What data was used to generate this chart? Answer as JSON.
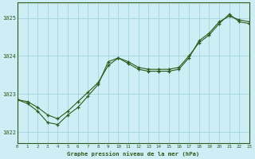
{
  "title": "Graphe pression niveau de la mer (hPa)",
  "bg_color": "#ceeef5",
  "grid_color": "#a8d8e0",
  "line_color": "#2d5a1b",
  "xlim": [
    0,
    23
  ],
  "ylim": [
    1021.7,
    1025.4
  ],
  "yticks": [
    1022,
    1023,
    1024,
    1025
  ],
  "xticks": [
    0,
    1,
    2,
    3,
    4,
    5,
    6,
    7,
    8,
    9,
    10,
    11,
    12,
    13,
    14,
    15,
    16,
    17,
    18,
    19,
    20,
    21,
    22,
    23
  ],
  "line1_x": [
    0,
    1,
    2,
    3,
    4,
    5,
    6,
    7,
    8,
    9,
    10,
    11,
    12,
    13,
    14,
    15,
    16,
    17,
    18,
    19,
    20,
    21,
    22,
    23
  ],
  "line1_y": [
    1022.85,
    1022.75,
    1022.55,
    1022.25,
    1022.2,
    1022.45,
    1022.65,
    1022.95,
    1023.25,
    1023.85,
    1023.95,
    1023.85,
    1023.7,
    1023.65,
    1023.65,
    1023.65,
    1023.7,
    1024.0,
    1024.35,
    1024.55,
    1024.85,
    1025.1,
    1024.9,
    1024.85
  ],
  "line2_x": [
    0,
    1,
    2,
    3,
    4,
    5,
    6,
    7,
    8,
    9,
    10,
    11,
    12,
    13,
    14,
    15,
    16,
    17,
    18,
    19,
    20,
    21,
    22,
    23
  ],
  "line2_y": [
    1022.85,
    1022.8,
    1022.65,
    1022.45,
    1022.35,
    1022.55,
    1022.8,
    1023.05,
    1023.3,
    1023.75,
    1023.95,
    1023.8,
    1023.65,
    1023.6,
    1023.6,
    1023.6,
    1023.65,
    1023.95,
    1024.4,
    1024.6,
    1024.9,
    1025.05,
    1024.95,
    1024.9
  ]
}
